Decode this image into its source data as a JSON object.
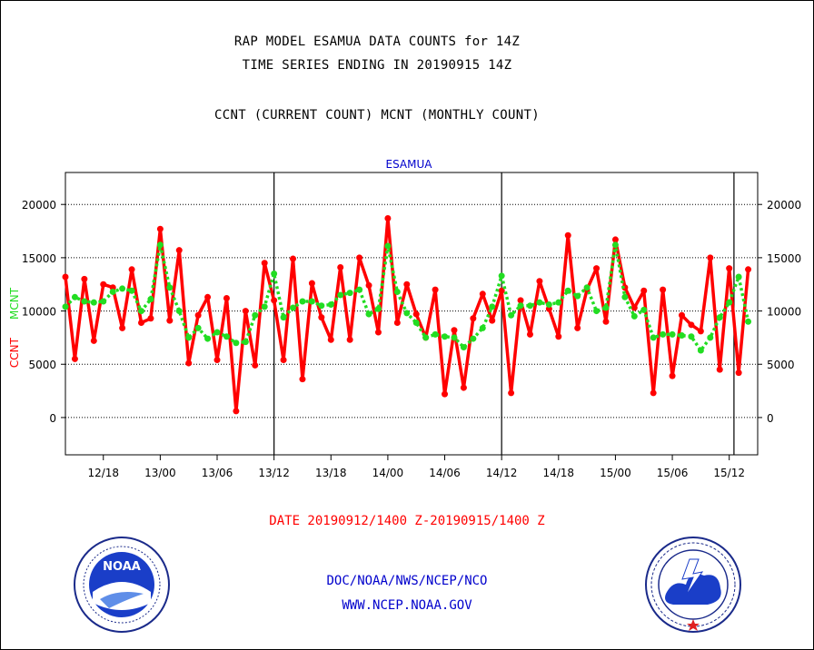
{
  "header": {
    "line1": "RAP MODEL ESAMUA DATA COUNTS for 14Z",
    "line2": "TIME SERIES ENDING IN 20190915 14Z",
    "line3": "CCNT (CURRENT COUNT) MCNT (MONTHLY COUNT)"
  },
  "colors": {
    "ccnt": "#ff0000",
    "mcnt": "#22dd22",
    "text_blue": "#0000cc",
    "axis": "#000000"
  },
  "chart_data": {
    "type": "line",
    "title": "ESAMUA",
    "ylabel_ccnt": "CCNT",
    "ylabel_mcnt": "MCNT",
    "ylim": [
      -3500,
      23000
    ],
    "yticks": [
      0,
      5000,
      10000,
      15000,
      20000
    ],
    "ytick_labels": [
      "0",
      "5000",
      "10000",
      "15000",
      "20000"
    ],
    "xlim": [
      0,
      73
    ],
    "xticks": [
      4,
      10,
      16,
      22,
      28,
      34,
      40,
      46,
      52,
      58,
      64,
      70
    ],
    "xtick_labels": [
      "12/18",
      "13/00",
      "13/06",
      "13/12",
      "13/18",
      "14/00",
      "14/06",
      "14/12",
      "14/18",
      "15/00",
      "15/06",
      "15/12"
    ],
    "day_boundaries": [
      22,
      46,
      70.5
    ],
    "grid": true,
    "series": [
      {
        "name": "CCNT",
        "x": [
          0,
          1,
          2,
          3,
          4,
          5,
          6,
          7,
          8,
          9,
          10,
          11,
          12,
          13,
          14,
          15,
          16,
          17,
          18,
          19,
          20,
          21,
          22,
          23,
          24,
          25,
          26,
          27,
          28,
          29,
          30,
          31,
          32,
          33,
          34,
          35,
          36,
          37,
          38,
          39,
          40,
          41,
          42,
          43,
          44,
          45,
          46,
          47,
          48,
          49,
          50,
          51,
          52,
          53,
          54,
          55,
          56,
          57,
          58,
          59,
          60,
          61,
          62,
          63,
          64,
          65,
          66,
          67,
          68,
          69,
          70,
          71,
          72
        ],
        "values": [
          13200,
          5500,
          13000,
          7200,
          12500,
          12200,
          8400,
          13900,
          8900,
          9300,
          17700,
          9100,
          15700,
          5100,
          9600,
          11300,
          5400,
          11200,
          600,
          10000,
          4900,
          14500,
          11000,
          5400,
          14900,
          3600,
          12600,
          9400,
          7300,
          14100,
          7300,
          15000,
          12400,
          8000,
          18700,
          8900,
          12500,
          9700,
          7500,
          12000,
          2200,
          8200,
          2800,
          9300,
          11600,
          9100,
          11900,
          2300,
          11000,
          7800,
          12800,
          10200,
          7600,
          17100,
          8400,
          12000,
          14000,
          9000,
          16700,
          12200,
          10300,
          11900,
          2300,
          12000,
          3900,
          9600,
          8700,
          8100,
          15000,
          4500,
          14000,
          4200,
          13900
        ]
      },
      {
        "name": "MCNT",
        "x": [
          0,
          1,
          2,
          3,
          4,
          5,
          6,
          7,
          8,
          9,
          10,
          11,
          12,
          13,
          14,
          15,
          16,
          17,
          18,
          19,
          20,
          21,
          22,
          23,
          24,
          25,
          26,
          27,
          28,
          29,
          30,
          31,
          32,
          33,
          34,
          35,
          36,
          37,
          38,
          39,
          40,
          41,
          42,
          43,
          44,
          45,
          46,
          47,
          48,
          49,
          50,
          51,
          52,
          53,
          54,
          55,
          56,
          57,
          58,
          59,
          60,
          61,
          62,
          63,
          64,
          65,
          66,
          67,
          68,
          69,
          70,
          71,
          72
        ],
        "values": [
          10400,
          11300,
          10900,
          10800,
          10900,
          11800,
          12100,
          11900,
          10000,
          11100,
          16200,
          12200,
          10000,
          7500,
          8400,
          7400,
          8000,
          7600,
          7000,
          7100,
          9600,
          10400,
          13500,
          9400,
          10300,
          10900,
          10900,
          10500,
          10600,
          11500,
          11700,
          12000,
          9700,
          10200,
          16100,
          11800,
          9800,
          8900,
          7500,
          7800,
          7600,
          7500,
          6600,
          7400,
          8400,
          10400,
          13300,
          9600,
          10500,
          10500,
          10800,
          10600,
          10800,
          11900,
          11400,
          12200,
          10000,
          10300,
          16200,
          11300,
          9500,
          10100,
          7500,
          7800,
          7800,
          7700,
          7600,
          6300,
          7500,
          9400,
          10800,
          13200,
          9000
        ]
      }
    ],
    "xlabel": "DATE 20190912/1400 Z-20190915/1400 Z"
  },
  "footer": {
    "line1": "DOC/NOAA/NWS/NCEP/NCO",
    "line2": "WWW.NCEP.NOAA.GOV"
  },
  "logos": {
    "left_icon": "noaa-logo-icon",
    "right_icon": "nws-logo-icon",
    "noaa_text": "NOAA"
  }
}
